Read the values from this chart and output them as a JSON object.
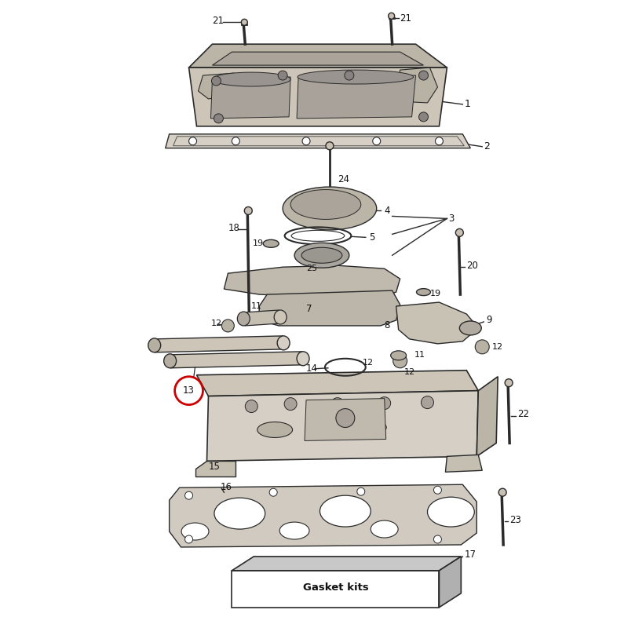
{
  "background_color": "#ffffff",
  "line_color": "#2a2a2a",
  "part_gray": "#c8c0b2",
  "part_light": "#ddd8ce",
  "part_dark": "#a09890",
  "highlight_red": "#cc0000",
  "figsize": [
    8.0,
    8.0
  ],
  "dpi": 100
}
